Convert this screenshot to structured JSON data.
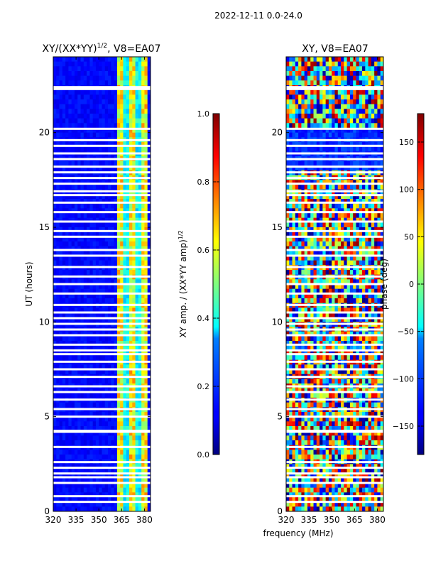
{
  "figure_title": "2022-12-11 0.0-24.0",
  "chart_data": [
    {
      "type": "heatmap",
      "title_main": "XY/(XX*YY)",
      "title_sup": "1/2",
      "title_suffix": ", V8=EA07",
      "xlabel": "",
      "ylabel": "UT (hours)",
      "xlim": [
        320,
        384
      ],
      "ylim": [
        0,
        24
      ],
      "xticks": [
        320,
        335,
        350,
        365,
        380
      ],
      "yticks": [
        0,
        5,
        10,
        15,
        20
      ],
      "colorbar": {
        "label_main": "XY amp. / (XX*YY amp)",
        "label_sup": "1/2",
        "range": [
          0,
          1
        ],
        "ticks": [
          "0.0",
          "0.2",
          "0.4",
          "0.6",
          "0.8",
          "1.0"
        ],
        "tick_values": [
          0,
          0.2,
          0.4,
          0.6,
          0.8,
          1.0
        ]
      },
      "description_values": {
        "background_level": 0.1,
        "bright_band_mhz": [
          362,
          382
        ],
        "bright_band_level": 0.5
      }
    },
    {
      "type": "heatmap",
      "title": "XY, V8=EA07",
      "xlabel": "frequency (MHz)",
      "ylabel": "",
      "xlim": [
        320,
        384
      ],
      "ylim": [
        0,
        24
      ],
      "xticks": [
        320,
        335,
        350,
        365,
        380
      ],
      "yticks": [
        0,
        5,
        10,
        15,
        20
      ],
      "colorbar": {
        "label": "phase (deg)",
        "range": [
          -180,
          180
        ],
        "ticks": [
          "−150",
          "−100",
          "−50",
          "0",
          "50",
          "100",
          "150"
        ],
        "tick_values": [
          -150,
          -100,
          -50,
          0,
          50,
          100,
          150
        ]
      }
    }
  ],
  "flagged_hours": [
    0.5,
    0.8,
    1.5,
    1.8,
    2.0,
    2.3,
    2.6,
    3.4,
    4.2,
    4.25,
    5.0,
    5.4,
    5.9,
    6.3,
    6.6,
    7.1,
    7.5,
    7.9,
    8.3,
    8.5,
    8.8,
    9.3,
    9.6,
    9.9,
    10.2,
    10.5,
    10.9,
    11.5,
    12.0,
    12.4,
    12.9,
    13.5,
    13.8,
    14.5,
    14.8,
    15.3,
    15.8,
    16.3,
    16.7,
    16.9,
    17.3,
    17.6,
    17.9,
    18.2,
    18.6,
    18.9,
    19.3,
    19.6,
    20.2,
    22.3,
    22.4
  ]
}
